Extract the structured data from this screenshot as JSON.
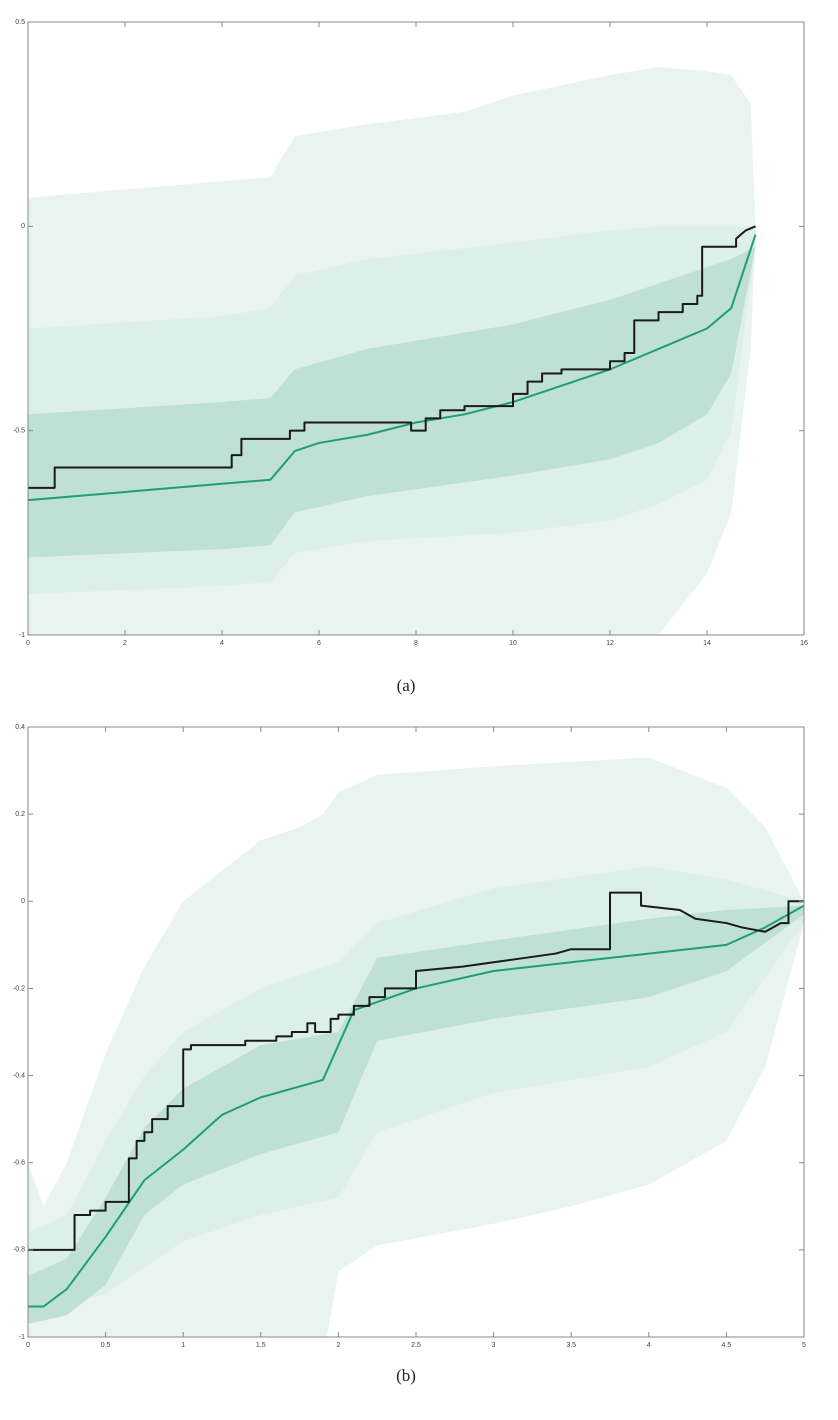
{
  "chart_data": [
    {
      "type": "line",
      "caption": "(a)",
      "xlim": [
        0,
        16
      ],
      "ylim": [
        -1,
        0.5
      ],
      "xticks": [
        0,
        2,
        4,
        6,
        8,
        10,
        12,
        14,
        16
      ],
      "yticks": [
        -1,
        -0.5,
        0,
        0.5
      ],
      "bands": [
        {
          "color": "#e9f4f0",
          "x": [
            0,
            1,
            3,
            5,
            5.5,
            7,
            9,
            10,
            12,
            13,
            14,
            14.5,
            14.9,
            15
          ],
          "upper": [
            0.07,
            0.08,
            0.1,
            0.12,
            0.22,
            0.25,
            0.28,
            0.32,
            0.37,
            0.39,
            0.38,
            0.37,
            0.3,
            0.0
          ],
          "lower": [
            -1.1,
            -1.1,
            -1.1,
            -1.1,
            -1.1,
            -1.1,
            -1.1,
            -1.1,
            -1.1,
            -1.0,
            -0.85,
            -0.7,
            -0.3,
            -0.02
          ]
        },
        {
          "color": "#dcefe8",
          "x": [
            0,
            4,
            5,
            5.5,
            7,
            10,
            12,
            13,
            14,
            14.5,
            15
          ],
          "upper": [
            -0.25,
            -0.22,
            -0.2,
            -0.12,
            -0.08,
            -0.04,
            -0.01,
            0,
            0,
            0,
            0
          ],
          "lower": [
            -0.9,
            -0.88,
            -0.87,
            -0.8,
            -0.77,
            -0.75,
            -0.72,
            -0.68,
            -0.62,
            -0.5,
            -0.05
          ]
        },
        {
          "color": "#bfe0d4",
          "x": [
            0,
            4,
            5,
            5.5,
            7,
            10,
            12,
            13,
            14,
            14.5,
            15
          ],
          "upper": [
            -0.46,
            -0.43,
            -0.42,
            -0.35,
            -0.3,
            -0.24,
            -0.18,
            -0.14,
            -0.1,
            -0.08,
            -0.05
          ],
          "lower": [
            -0.81,
            -0.79,
            -0.78,
            -0.7,
            -0.66,
            -0.61,
            -0.57,
            -0.53,
            -0.46,
            -0.36,
            -0.05
          ]
        }
      ],
      "series": [
        {
          "color": "#1f9e74",
          "x": [
            0,
            2,
            4,
            5,
            5.5,
            6,
            7,
            8,
            9,
            10,
            11,
            12,
            13,
            14,
            14.5,
            15
          ],
          "values": [
            -0.67,
            -0.65,
            -0.63,
            -0.62,
            -0.55,
            -0.53,
            -0.51,
            -0.48,
            -0.46,
            -0.43,
            -0.39,
            -0.35,
            -0.3,
            -0.25,
            -0.2,
            -0.02
          ]
        },
        {
          "color": "#1a1a1a",
          "x": [
            0,
            0.55,
            0.55,
            4.2,
            4.2,
            4.4,
            4.4,
            5.4,
            5.4,
            5.7,
            5.7,
            7.9,
            7.9,
            8.2,
            8.2,
            8.5,
            8.5,
            9,
            9,
            10,
            10,
            10.3,
            10.3,
            10.6,
            10.6,
            11,
            11,
            12,
            12,
            12.3,
            12.3,
            12.5,
            12.5,
            13,
            13,
            13.5,
            13.5,
            13.8,
            13.8,
            13.9,
            13.9,
            14.6,
            14.6,
            14.8,
            15
          ],
          "values": [
            -0.64,
            -0.64,
            -0.59,
            -0.59,
            -0.56,
            -0.56,
            -0.52,
            -0.52,
            -0.5,
            -0.5,
            -0.48,
            -0.48,
            -0.5,
            -0.5,
            -0.47,
            -0.47,
            -0.45,
            -0.45,
            -0.44,
            -0.44,
            -0.41,
            -0.41,
            -0.38,
            -0.38,
            -0.36,
            -0.36,
            -0.35,
            -0.35,
            -0.33,
            -0.33,
            -0.31,
            -0.31,
            -0.23,
            -0.23,
            -0.21,
            -0.21,
            -0.19,
            -0.19,
            -0.17,
            -0.17,
            -0.05,
            -0.05,
            -0.03,
            -0.01,
            0
          ]
        }
      ]
    },
    {
      "type": "line",
      "caption": "(b)",
      "xlim": [
        0,
        5
      ],
      "ylim": [
        -1,
        0.4
      ],
      "xticks": [
        0,
        0.5,
        1,
        1.5,
        2,
        2.5,
        3,
        3.5,
        4,
        4.5,
        5
      ],
      "yticks": [
        -1,
        -0.8,
        -0.6,
        -0.4,
        -0.2,
        0,
        0.2,
        0.4
      ],
      "bands": [
        {
          "color": "#e9f4f0",
          "x": [
            0,
            0.1,
            0.25,
            0.5,
            0.75,
            1,
            1.5,
            1.75,
            1.9,
            2,
            2.25,
            3,
            3.5,
            4,
            4.5,
            4.75,
            5
          ],
          "upper": [
            -0.6,
            -0.7,
            -0.6,
            -0.35,
            -0.15,
            0,
            0.14,
            0.17,
            0.2,
            0.25,
            0.29,
            0.31,
            0.32,
            0.33,
            0.26,
            0.17,
            0
          ],
          "lower": [
            -1.05,
            -1.08,
            -1.1,
            -1.1,
            -1.1,
            -1.1,
            -1.1,
            -1.1,
            -1.05,
            -0.85,
            -0.79,
            -0.74,
            -0.7,
            -0.65,
            -0.55,
            -0.38,
            -0.05
          ]
        },
        {
          "color": "#dcefe8",
          "x": [
            0,
            0.25,
            0.5,
            0.75,
            1,
            1.5,
            2,
            2.25,
            3,
            4,
            4.5,
            5
          ],
          "upper": [
            -0.76,
            -0.72,
            -0.55,
            -0.4,
            -0.3,
            -0.2,
            -0.14,
            -0.05,
            0.03,
            0.08,
            0.05,
            0
          ],
          "lower": [
            -0.95,
            -0.93,
            -0.9,
            -0.84,
            -0.78,
            -0.72,
            -0.68,
            -0.53,
            -0.44,
            -0.38,
            -0.3,
            -0.05
          ]
        },
        {
          "color": "#bfe0d4",
          "x": [
            0,
            0.25,
            0.5,
            0.75,
            1,
            1.5,
            2,
            2.25,
            3,
            4,
            4.5,
            5
          ],
          "upper": [
            -0.86,
            -0.82,
            -0.68,
            -0.52,
            -0.43,
            -0.33,
            -0.3,
            -0.13,
            -0.09,
            -0.04,
            -0.02,
            -0.01
          ],
          "lower": [
            -0.97,
            -0.95,
            -0.88,
            -0.72,
            -0.65,
            -0.58,
            -0.53,
            -0.32,
            -0.27,
            -0.22,
            -0.16,
            -0.03
          ]
        }
      ],
      "series": [
        {
          "color": "#1f9e74",
          "x": [
            0,
            0.1,
            0.25,
            0.5,
            0.75,
            1,
            1.25,
            1.5,
            1.9,
            2,
            2.1,
            2.5,
            3,
            3.5,
            4,
            4.5,
            4.75,
            5
          ],
          "values": [
            -0.93,
            -0.93,
            -0.89,
            -0.77,
            -0.64,
            -0.57,
            -0.49,
            -0.45,
            -0.41,
            -0.33,
            -0.25,
            -0.2,
            -0.16,
            -0.14,
            -0.12,
            -0.1,
            -0.06,
            -0.01
          ]
        },
        {
          "color": "#1a1a1a",
          "x": [
            0,
            0.3,
            0.3,
            0.4,
            0.4,
            0.5,
            0.5,
            0.65,
            0.65,
            0.7,
            0.7,
            0.75,
            0.75,
            0.8,
            0.8,
            0.9,
            0.9,
            1,
            1,
            1.05,
            1.05,
            1.4,
            1.4,
            1.6,
            1.6,
            1.7,
            1.7,
            1.8,
            1.8,
            1.85,
            1.85,
            1.95,
            1.95,
            2,
            2,
            2.1,
            2.1,
            2.2,
            2.2,
            2.3,
            2.3,
            2.5,
            2.5,
            2.8,
            3,
            3.2,
            3.4,
            3.5,
            3.75,
            3.75,
            3.95,
            3.95,
            4.2,
            4.3,
            4.5,
            4.6,
            4.75,
            4.85,
            4.9,
            4.9,
            5
          ],
          "values": [
            -0.8,
            -0.8,
            -0.72,
            -0.72,
            -0.71,
            -0.71,
            -0.69,
            -0.69,
            -0.59,
            -0.59,
            -0.55,
            -0.55,
            -0.53,
            -0.53,
            -0.5,
            -0.5,
            -0.47,
            -0.47,
            -0.34,
            -0.34,
            -0.33,
            -0.33,
            -0.32,
            -0.32,
            -0.31,
            -0.31,
            -0.3,
            -0.3,
            -0.28,
            -0.28,
            -0.3,
            -0.3,
            -0.27,
            -0.27,
            -0.26,
            -0.26,
            -0.24,
            -0.24,
            -0.22,
            -0.22,
            -0.2,
            -0.2,
            -0.16,
            -0.15,
            -0.14,
            -0.13,
            -0.12,
            -0.11,
            -0.11,
            0.02,
            0.02,
            -0.01,
            -0.02,
            -0.04,
            -0.05,
            -0.06,
            -0.07,
            -0.05,
            -0.05,
            0,
            0
          ]
        }
      ]
    }
  ]
}
